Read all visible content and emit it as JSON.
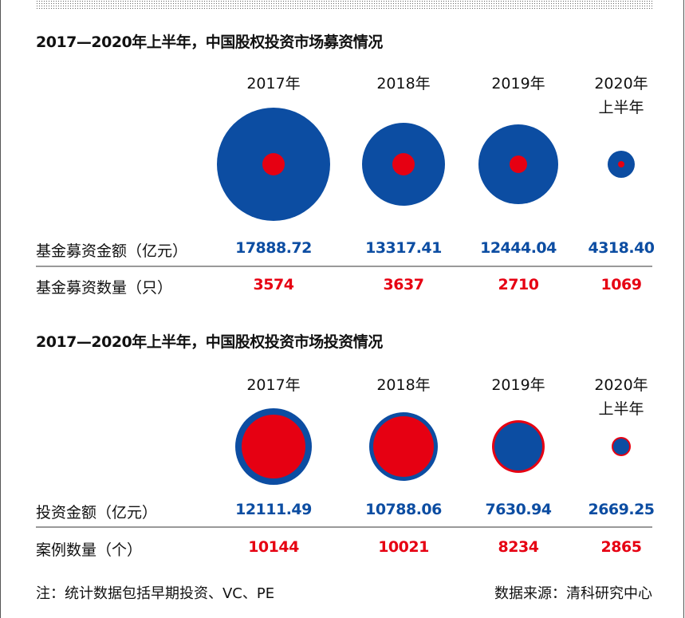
{
  "colors": {
    "blue": "#0c4da2",
    "red": "#e60012"
  },
  "chart_data": [
    {
      "type": "bubble",
      "title": "2017—2020年上半年，中国股权投资市场募资情况",
      "categories": [
        "2017年",
        "2018年",
        "2019年",
        "2020年上半年"
      ],
      "category_lines": [
        [
          "2017年"
        ],
        [
          "2018年"
        ],
        [
          "2019年"
        ],
        [
          "2020年",
          "上半年"
        ]
      ],
      "series": [
        {
          "name": "基金募资金额（亿元）",
          "color": "#0c4da2",
          "values": [
            "17888.72",
            "13317.41",
            "12444.04",
            "4318.40"
          ]
        },
        {
          "name": "基金募资数量（只）",
          "color": "#e60012",
          "values": [
            "3574",
            "3637",
            "2710",
            "1069"
          ]
        }
      ]
    },
    {
      "type": "bubble",
      "title": "2017—2020年上半年，中国股权投资市场投资情况",
      "categories": [
        "2017年",
        "2018年",
        "2019年",
        "2020年上半年"
      ],
      "category_lines": [
        [
          "2017年"
        ],
        [
          "2018年"
        ],
        [
          "2019年"
        ],
        [
          "2020年",
          "上半年"
        ]
      ],
      "series": [
        {
          "name": "投资金额（亿元）",
          "color": "#0c4da2",
          "values": [
            "12111.49",
            "10788.06",
            "7630.94",
            "2669.25"
          ]
        },
        {
          "name": "案例数量（个）",
          "color": "#e60012",
          "values": [
            "10144",
            "10021",
            "8234",
            "2865"
          ]
        }
      ]
    }
  ],
  "footer": {
    "note": "注：统计数据包括早期投资、VC、PE",
    "source": "数据来源：清科研究中心"
  }
}
